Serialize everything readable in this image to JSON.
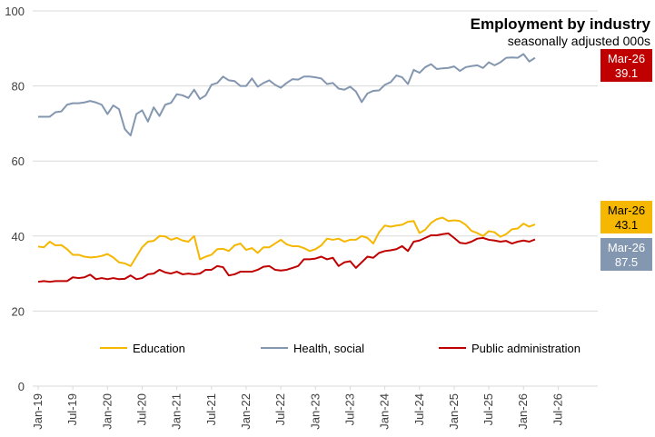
{
  "chart_data": {
    "type": "line",
    "title": "Employment by industry",
    "subtitle": "seasonally adjusted 000s",
    "xlabel": "",
    "ylabel": "",
    "ylim": [
      0,
      100
    ],
    "yticks": [
      0,
      20,
      40,
      60,
      80,
      100
    ],
    "x_start": "Jan-19",
    "xticks": [
      "Jan-19",
      "Jul-19",
      "Jan-20",
      "Jul-20",
      "Jan-21",
      "Jul-21",
      "Jan-22",
      "Jul-22",
      "Jan-23",
      "Jul-23",
      "Jan-24",
      "Jul-24",
      "Jan-25",
      "Jul-25",
      "Jan-26",
      "Jul-26"
    ],
    "grid": "horizontal",
    "legend_position": "bottom",
    "series": [
      {
        "name": "Education",
        "color": "#F5B700",
        "values": [
          37.2,
          37.0,
          38.5,
          37.5,
          37.6,
          36.5,
          35.0,
          35.0,
          34.5,
          34.3,
          34.4,
          34.7,
          35.2,
          34.3,
          33.0,
          32.7,
          32.0,
          34.5,
          37.0,
          38.5,
          38.7,
          40.0,
          39.9,
          39.0,
          39.5,
          38.8,
          38.5,
          40.0,
          33.8,
          34.5,
          35.0,
          36.5,
          36.6,
          36.0,
          37.5,
          38.0,
          36.3,
          36.8,
          35.5,
          37.0,
          37.0,
          38.0,
          39.0,
          37.8,
          37.3,
          37.3,
          36.8,
          36.0,
          36.5,
          37.5,
          39.3,
          39.0,
          39.3,
          38.5,
          39.0,
          39.0,
          40.0,
          39.5,
          38.0,
          41.0,
          42.8,
          42.5,
          42.8,
          43.0,
          43.8,
          44.0,
          40.8,
          41.7,
          43.5,
          44.5,
          44.9,
          44.0,
          44.2,
          44.0,
          43.0,
          41.4,
          40.8,
          40.0,
          41.3,
          41.0,
          39.8,
          40.5,
          41.8,
          42.0,
          43.3,
          42.5,
          43.1
        ],
        "last_label": "Mar-26",
        "last_value": "43.1"
      },
      {
        "name": "Health, social",
        "color": "#8497B0",
        "values": [
          71.8,
          71.8,
          71.8,
          73.0,
          73.2,
          75.0,
          75.4,
          75.4,
          75.6,
          76.0,
          75.6,
          75.0,
          72.5,
          74.8,
          73.8,
          68.5,
          66.8,
          72.5,
          73.5,
          70.5,
          74.3,
          72.0,
          75.0,
          75.5,
          77.8,
          77.5,
          76.8,
          79.0,
          76.5,
          77.5,
          80.3,
          80.8,
          82.5,
          81.5,
          81.3,
          80.0,
          80.0,
          82.0,
          79.8,
          80.8,
          81.5,
          80.3,
          79.5,
          80.8,
          81.8,
          81.7,
          82.5,
          82.5,
          82.3,
          82.0,
          80.5,
          80.8,
          79.3,
          79.0,
          79.8,
          78.5,
          75.7,
          78.0,
          78.7,
          78.8,
          80.3,
          81.0,
          82.8,
          82.3,
          80.5,
          84.3,
          83.5,
          85.0,
          85.8,
          84.5,
          84.7,
          84.8,
          85.2,
          84.0,
          85.0,
          85.3,
          85.5,
          84.8,
          86.3,
          85.5,
          86.3,
          87.5,
          87.6,
          87.5,
          88.5,
          86.5,
          87.5
        ],
        "last_label": "Mar-26",
        "last_value": "87.5"
      },
      {
        "name": "Public administration",
        "color": "#C00000",
        "values": [
          27.8,
          28.0,
          27.8,
          28.0,
          28.0,
          28.0,
          29.0,
          28.8,
          29.0,
          29.7,
          28.5,
          28.8,
          28.5,
          28.8,
          28.5,
          28.6,
          29.5,
          28.5,
          28.8,
          29.8,
          30.0,
          31.0,
          30.3,
          30.0,
          30.5,
          29.8,
          30.0,
          29.8,
          30.0,
          31.0,
          31.0,
          32.0,
          31.7,
          29.5,
          29.8,
          30.5,
          30.5,
          30.5,
          31.0,
          31.8,
          32.0,
          31.0,
          30.8,
          31.0,
          31.5,
          32.0,
          33.8,
          33.8,
          34.0,
          34.5,
          33.8,
          34.2,
          32.0,
          33.0,
          33.3,
          31.5,
          33.0,
          34.5,
          34.2,
          35.5,
          36.0,
          36.2,
          36.5,
          37.3,
          36.0,
          38.5,
          38.8,
          39.5,
          40.2,
          40.2,
          40.5,
          40.7,
          39.5,
          38.2,
          38.0,
          38.5,
          39.3,
          39.5,
          39.0,
          38.8,
          38.5,
          38.7,
          38.0,
          38.5,
          38.8,
          38.5,
          39.1
        ],
        "last_label": "Mar-26",
        "last_value": "39.1"
      }
    ]
  }
}
